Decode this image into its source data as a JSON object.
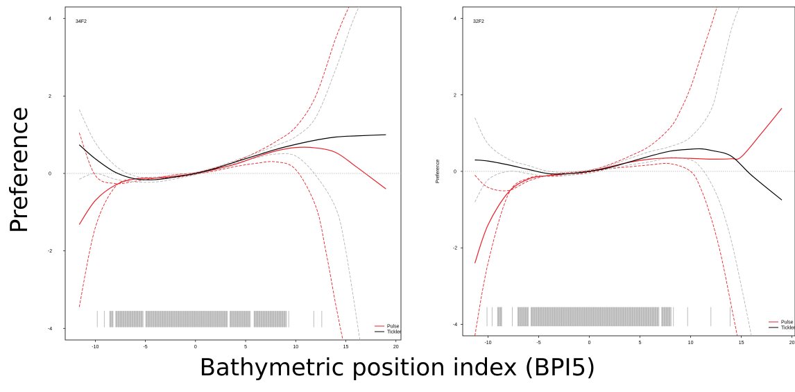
{
  "figure": {
    "ylabel": "Preference",
    "xlabel": "Bathymetric position index (BPI5)",
    "colors": {
      "pulse": "#e8202a",
      "tickler": "#000000",
      "tickler_ci": "#b4b4b4",
      "rug": "#b4b4b4",
      "zero_line": "#b4b4b4"
    }
  },
  "chart_data": [
    {
      "type": "line",
      "panel_label": "34F2",
      "ylabel": "",
      "xlim": [
        -13,
        20.5
      ],
      "ylim": [
        -4.3,
        4.3
      ],
      "xticks": [
        -10,
        -5,
        0,
        5,
        10,
        15,
        20
      ],
      "yticks": [
        -4,
        -2,
        0,
        2,
        4
      ],
      "legend": [
        "Pulse",
        "Tickler"
      ],
      "legend_position": "bottom-right",
      "series": [
        {
          "name": "Pulse",
          "style": "solid",
          "color": "#e8202a",
          "x": [
            -11.6,
            -10,
            -8,
            -6,
            -4,
            -2,
            0,
            2,
            4,
            6,
            8,
            10,
            12,
            14,
            16,
            19
          ],
          "y": [
            -1.32,
            -0.7,
            -0.3,
            -0.14,
            -0.12,
            -0.07,
            0,
            0.11,
            0.24,
            0.42,
            0.58,
            0.67,
            0.66,
            0.54,
            0.18,
            -0.4
          ]
        },
        {
          "name": "Tickler",
          "style": "solid",
          "color": "#000000",
          "x": [
            -11.6,
            -10,
            -8,
            -6,
            -4,
            -2,
            0,
            2,
            4,
            6,
            8,
            10,
            12,
            14,
            16,
            19
          ],
          "y": [
            0.74,
            0.38,
            0.03,
            -0.14,
            -0.16,
            -0.09,
            0,
            0.13,
            0.3,
            0.46,
            0.62,
            0.75,
            0.86,
            0.94,
            0.97,
            1.0
          ]
        },
        {
          "style": "dashed",
          "color": "#e8202a",
          "x": [
            -11.6,
            -10,
            -8,
            -6,
            -4,
            -2,
            0,
            2,
            4,
            6,
            8,
            10,
            12,
            14,
            15.3
          ],
          "y": [
            1.05,
            -0.05,
            -0.26,
            -0.2,
            -0.12,
            -0.03,
            0.02,
            0.15,
            0.31,
            0.54,
            0.82,
            1.2,
            2.0,
            3.5,
            4.3
          ]
        },
        {
          "style": "dashed",
          "color": "#e8202a",
          "x": [
            -11.6,
            -10,
            -8,
            -6,
            -4,
            -2,
            0,
            2,
            4,
            6,
            8,
            10,
            12,
            13,
            14,
            14.7
          ],
          "y": [
            -3.45,
            -1.4,
            -0.34,
            -0.14,
            -0.12,
            -0.1,
            -0.02,
            0.07,
            0.18,
            0.26,
            0.3,
            0.1,
            -0.85,
            -2.0,
            -3.4,
            -4.3
          ]
        },
        {
          "style": "dashed",
          "color": "#b4b4b4",
          "x": [
            -11.6,
            -10,
            -8,
            -6,
            -4,
            -2,
            0,
            2,
            4,
            6,
            8,
            10,
            12,
            14,
            15.5,
            16.3
          ],
          "y": [
            1.65,
            0.8,
            0.2,
            -0.07,
            -0.09,
            -0.04,
            0.03,
            0.16,
            0.34,
            0.52,
            0.72,
            0.95,
            1.45,
            2.7,
            3.8,
            4.3
          ]
        },
        {
          "style": "dashed",
          "color": "#b4b4b4",
          "x": [
            -11.6,
            -10,
            -8,
            -6,
            -4,
            -2,
            0,
            2,
            4,
            6,
            8,
            10,
            12,
            14,
            15,
            16.4
          ],
          "y": [
            -0.15,
            0.0,
            -0.15,
            -0.22,
            -0.22,
            -0.14,
            -0.03,
            0.1,
            0.26,
            0.4,
            0.5,
            0.45,
            -0.05,
            -0.9,
            -2.0,
            -4.3
          ]
        }
      ],
      "rug": {
        "x_ranges": [
          [
            -9.8,
            -9.7
          ],
          [
            -9.1,
            -8.9
          ],
          [
            -8.6,
            -8.2
          ],
          [
            -8.0,
            -5.2
          ],
          [
            -5.0,
            3.2
          ],
          [
            3.4,
            5.5
          ],
          [
            5.8,
            9.1
          ],
          [
            9.3,
            9.4
          ],
          [
            11.8,
            11.9
          ],
          [
            12.6,
            12.7
          ]
        ],
        "y_range": [
          -3.55,
          -3.97
        ]
      }
    },
    {
      "type": "line",
      "panel_label": "32F2",
      "ylabel": "Preference",
      "xlim": [
        -12.5,
        20.3
      ],
      "ylim": [
        -4.3,
        4.3
      ],
      "xticks": [
        -10,
        -5,
        0,
        5,
        10,
        15,
        20
      ],
      "yticks": [
        -4,
        -2,
        0,
        2,
        4
      ],
      "legend": [
        "Pulse",
        "Tickler"
      ],
      "legend_position": "bottom-right",
      "series": [
        {
          "name": "Pulse",
          "style": "solid",
          "color": "#e8202a",
          "x": [
            -11.3,
            -10,
            -8,
            -6,
            -4,
            -2,
            0,
            2,
            4,
            6,
            8,
            10,
            12,
            14,
            15,
            17,
            19
          ],
          "y": [
            -2.4,
            -1.4,
            -0.55,
            -0.2,
            -0.11,
            -0.06,
            0,
            0.12,
            0.24,
            0.32,
            0.35,
            0.34,
            0.32,
            0.33,
            0.38,
            1.0,
            1.65
          ]
        },
        {
          "name": "Tickler",
          "style": "solid",
          "color": "#000000",
          "x": [
            -11.3,
            -10,
            -8,
            -6,
            -4,
            -2,
            0,
            2,
            4,
            6,
            8,
            10,
            11,
            12,
            14,
            16,
            19
          ],
          "y": [
            0.3,
            0.27,
            0.17,
            0.05,
            -0.06,
            -0.06,
            0,
            0.1,
            0.25,
            0.4,
            0.53,
            0.58,
            0.59,
            0.55,
            0.4,
            -0.1,
            -0.75
          ]
        },
        {
          "style": "dashed",
          "color": "#e8202a",
          "x": [
            -11.3,
            -10,
            -8,
            -6,
            -4,
            -2,
            0,
            2,
            4,
            6,
            8,
            9,
            10,
            11,
            12,
            12.6
          ],
          "y": [
            -0.1,
            -0.42,
            -0.5,
            -0.25,
            -0.1,
            -0.03,
            0.02,
            0.18,
            0.4,
            0.67,
            1.15,
            1.6,
            2.2,
            3.0,
            3.8,
            4.3
          ]
        },
        {
          "style": "dashed",
          "color": "#e8202a",
          "x": [
            -11.3,
            -10,
            -8,
            -6,
            -4,
            -2,
            0,
            2,
            4,
            6,
            8,
            10,
            11,
            12,
            13,
            14,
            14.6
          ],
          "y": [
            -4.3,
            -2.4,
            -0.6,
            -0.18,
            -0.12,
            -0.1,
            -0.02,
            0.07,
            0.12,
            0.17,
            0.2,
            0.0,
            -0.45,
            -1.2,
            -2.2,
            -3.5,
            -4.3
          ]
        },
        {
          "style": "dashed",
          "color": "#b4b4b4",
          "x": [
            -11.3,
            -10,
            -8,
            -6,
            -4,
            -2,
            0,
            2,
            4,
            6,
            8,
            10,
            12,
            13,
            14,
            14.8
          ],
          "y": [
            1.4,
            0.72,
            0.32,
            0.15,
            0.0,
            -0.02,
            0.04,
            0.16,
            0.34,
            0.52,
            0.65,
            0.9,
            1.6,
            2.6,
            3.7,
            4.3
          ]
        },
        {
          "style": "dashed",
          "color": "#b4b4b4",
          "x": [
            -11.3,
            -10,
            -8,
            -6,
            -4,
            -2,
            0,
            2,
            4,
            6,
            8,
            10,
            11,
            12,
            13,
            14,
            15,
            16
          ],
          "y": [
            -0.8,
            -0.22,
            0.0,
            -0.06,
            -0.14,
            -0.1,
            -0.05,
            0.07,
            0.17,
            0.25,
            0.36,
            0.3,
            0.1,
            -0.3,
            -0.9,
            -1.8,
            -3.0,
            -4.3
          ]
        }
      ],
      "rug": {
        "x_ranges": [
          [
            -10.1,
            -10.0
          ],
          [
            -9.6,
            -9.5
          ],
          [
            -9.1,
            -8.6
          ],
          [
            -7.6,
            -7.5
          ],
          [
            -7.1,
            -6.0
          ],
          [
            -5.8,
            6.9
          ],
          [
            7.1,
            8.1
          ],
          [
            8.3,
            8.4
          ],
          [
            9.7,
            9.8
          ],
          [
            12.0,
            12.1
          ],
          [
            13.9,
            14.0
          ]
        ],
        "y_range": [
          -3.55,
          -4.05
        ]
      }
    }
  ]
}
